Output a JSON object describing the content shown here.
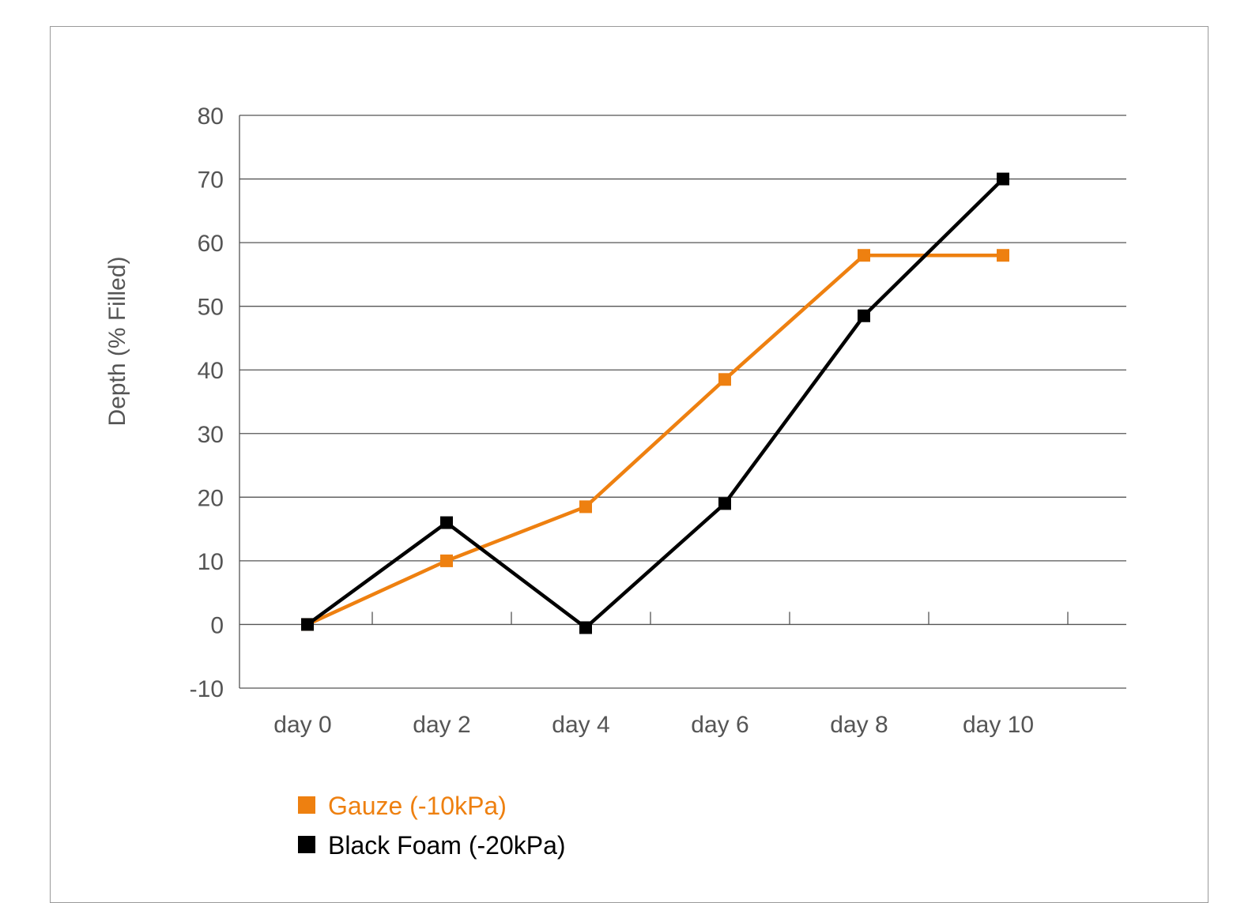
{
  "chart_data": {
    "type": "line",
    "title": "",
    "xlabel": "",
    "ylabel": "Depth (% Filled)",
    "categories": [
      "day 0",
      "day 2",
      "day 4",
      "day 6",
      "day 8",
      "day 10"
    ],
    "ylim": [
      -10,
      80
    ],
    "yticks": [
      -10,
      0,
      10,
      20,
      30,
      40,
      50,
      60,
      70,
      80
    ],
    "grid": "horizontal",
    "legend_position": "bottom-left",
    "series": [
      {
        "name": "Gauze (-10kPa)",
        "color": "#EE8010",
        "marker": "square",
        "values": [
          0,
          10,
          18.5,
          38.5,
          58,
          58
        ]
      },
      {
        "name": "Black Foam (-20kPa)",
        "color": "#000000",
        "marker": "square",
        "values": [
          0,
          16,
          -0.5,
          19,
          48.5,
          70
        ]
      }
    ]
  }
}
